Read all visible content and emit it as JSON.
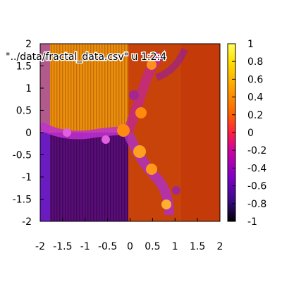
{
  "chart_data": {
    "type": "heatmap",
    "title": "",
    "xlabel": "",
    "ylabel": "",
    "xlim": [
      -2,
      2
    ],
    "ylim": [
      -2,
      2
    ],
    "zlim": [
      -1,
      1
    ],
    "x_ticks": [
      "-2",
      "-1.5",
      "-1",
      "-0.5",
      "0",
      "0.5",
      "1",
      "1.5",
      "2"
    ],
    "y_ticks": [
      "-2",
      "-1.5",
      "-1",
      "-0.5",
      "0",
      "0.5",
      "1",
      "1.5",
      "2"
    ],
    "colorbar_ticks": [
      "1",
      "0.8",
      "0.6",
      "0.4",
      "0.2",
      "0",
      "-0.2",
      "-0.4",
      "-0.6",
      "-0.8",
      "-1"
    ],
    "legend": {
      "label": "\"../data/fractal_data.csv\" u 1:2:4",
      "placement": "top-left"
    },
    "colormap": [
      "#000000",
      "#3a0a8a",
      "#8000c8",
      "#d000a0",
      "#ff2040",
      "#ff6000",
      "#ffa000",
      "#ffe000",
      "#ffff60"
    ],
    "grid": false,
    "regions": [
      {
        "name": "upper-left",
        "x": [
          -2,
          0
        ],
        "y": [
          0,
          2
        ],
        "value": 0.55
      },
      {
        "name": "lower-left",
        "x": [
          -2,
          0
        ],
        "y": [
          -2,
          0
        ],
        "value": -0.75
      },
      {
        "name": "right",
        "x": [
          0,
          2
        ],
        "y": [
          -2,
          2
        ],
        "value": 0.3
      }
    ]
  }
}
